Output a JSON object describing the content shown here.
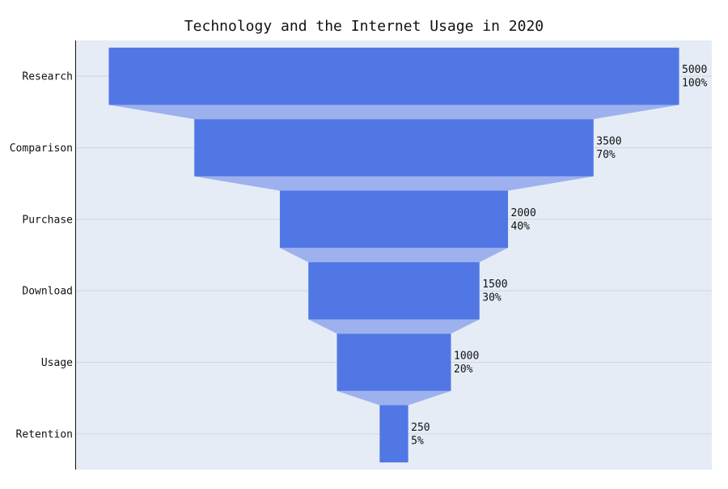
{
  "chart_data": {
    "type": "funnel",
    "title": "Technology and the Internet Usage in 2020",
    "categories": [
      "Research",
      "Comparison",
      "Purchase",
      "Download",
      "Usage",
      "Retention"
    ],
    "values": [
      5000,
      3500,
      2000,
      1500,
      1000,
      250
    ],
    "percent_labels": [
      "100%",
      "70%",
      "40%",
      "30%",
      "20%",
      "5%"
    ],
    "xlim": [
      -2787,
      2787
    ],
    "colors": {
      "plot_background": "#e5ecf6",
      "bar": "#5177e4",
      "connector": "#9db1ee",
      "gridline": "#d2d6e0",
      "axis_line": "#111111"
    },
    "grid": true
  }
}
